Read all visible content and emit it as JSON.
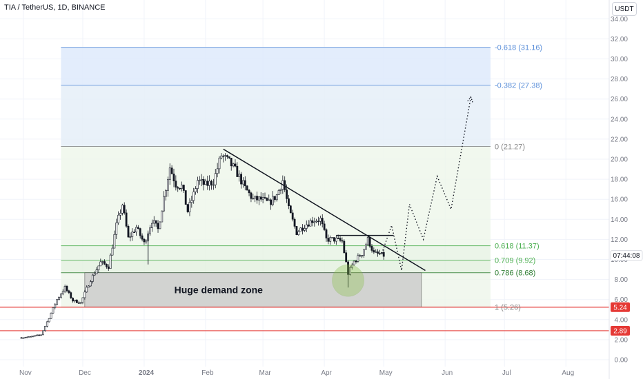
{
  "header": {
    "symbol_line": "TIA / TetherUS, 1D, BINANCE",
    "currency": "USDT"
  },
  "colors": {
    "fib_blue": "#5b8fd9",
    "fib_gray": "#888888",
    "fib_green": "#4caf50",
    "fib_green_dark": "#2e7d32",
    "red_line": "#e53935",
    "candle": "#131722",
    "demand_zone": "#c8c8c8",
    "demand_circle": "#8bc34a"
  },
  "chart_data": {
    "type": "candlestick",
    "title": "TIA / TetherUS, 1D, BINANCE",
    "ylim": [
      0,
      34
    ],
    "y_ticks": [
      "34.00",
      "32.00",
      "30.00",
      "28.00",
      "26.00",
      "24.00",
      "22.00",
      "20.00",
      "18.00",
      "16.00",
      "14.00",
      "12.00",
      "10.00",
      "8.00",
      "6.00",
      "4.00",
      "2.00",
      "0.00"
    ],
    "y_tick_values": [
      34,
      32,
      30,
      28,
      26,
      24,
      22,
      20,
      18,
      16,
      14,
      12,
      10,
      8,
      6,
      4,
      2,
      0
    ],
    "x_ticks": [
      "Nov",
      "Dec",
      "2024",
      "Feb",
      "Mar",
      "Apr",
      "May",
      "Jun",
      "Jul",
      "Aug"
    ],
    "x_tick_dates": [
      "2023-11-01",
      "2023-12-01",
      "2024-01-01",
      "2024-02-01",
      "2024-03-01",
      "2024-04-01",
      "2024-05-01",
      "2024-06-01",
      "2024-07-01",
      "2024-08-01"
    ],
    "price_path": [
      [
        "2023-10-31",
        2.2
      ],
      [
        "2023-11-05",
        2.3
      ],
      [
        "2023-11-10",
        2.5
      ],
      [
        "2023-11-14",
        4.2
      ],
      [
        "2023-11-18",
        6.0
      ],
      [
        "2023-11-22",
        7.2
      ],
      [
        "2023-11-26",
        5.9
      ],
      [
        "2023-11-30",
        5.7
      ],
      [
        "2023-12-05",
        8.0
      ],
      [
        "2023-12-10",
        9.7
      ],
      [
        "2023-12-14",
        9.3
      ],
      [
        "2023-12-18",
        13.4
      ],
      [
        "2023-12-21",
        15.5
      ],
      [
        "2023-12-24",
        12.1
      ],
      [
        "2023-12-28",
        13.2
      ],
      [
        "2024-01-01",
        11.6
      ],
      [
        "2024-01-05",
        13.9
      ],
      [
        "2024-01-08",
        13.0
      ],
      [
        "2024-01-11",
        16.2
      ],
      [
        "2024-01-14",
        19.2
      ],
      [
        "2024-01-17",
        17.5
      ],
      [
        "2024-01-20",
        17.3
      ],
      [
        "2024-01-23",
        14.8
      ],
      [
        "2024-01-26",
        16.5
      ],
      [
        "2024-01-28",
        17.9
      ],
      [
        "2024-02-01",
        17.4
      ],
      [
        "2024-02-05",
        17.8
      ],
      [
        "2024-02-09",
        20.4
      ],
      [
        "2024-02-13",
        19.7
      ],
      [
        "2024-02-17",
        18.6
      ],
      [
        "2024-02-21",
        17.1
      ],
      [
        "2024-02-25",
        16.0
      ],
      [
        "2024-02-29",
        16.0
      ],
      [
        "2024-03-04",
        15.6
      ],
      [
        "2024-03-08",
        16.4
      ],
      [
        "2024-03-11",
        17.9
      ],
      [
        "2024-03-14",
        15.0
      ],
      [
        "2024-03-18",
        12.7
      ],
      [
        "2024-03-22",
        13.4
      ],
      [
        "2024-03-26",
        13.9
      ],
      [
        "2024-03-30",
        14.0
      ],
      [
        "2024-04-02",
        12.0
      ],
      [
        "2024-04-06",
        12.0
      ],
      [
        "2024-04-10",
        11.8
      ],
      [
        "2024-04-13",
        8.6
      ],
      [
        "2024-04-16",
        9.8
      ],
      [
        "2024-04-20",
        10.6
      ],
      [
        "2024-04-23",
        12.0
      ],
      [
        "2024-04-26",
        10.6
      ],
      [
        "2024-04-29",
        10.5
      ],
      [
        "2024-05-01",
        10.4
      ]
    ],
    "fib_levels": [
      {
        "label": "-0.618 (31.16)",
        "value": 31.16
      },
      {
        "label": "-0.382 (27.38)",
        "value": 27.38
      },
      {
        "label": "0 (21.27)",
        "value": 21.27
      },
      {
        "label": "0.618 (11.37)",
        "value": 11.37
      },
      {
        "label": "0.709 (9.92)",
        "value": 9.92
      },
      {
        "label": "0.786 (8.68)",
        "value": 8.68
      },
      {
        "label": "1 (5.26)",
        "value": 5.26
      }
    ],
    "horizontal_lines": [
      {
        "label": "5.24",
        "value": 5.24
      },
      {
        "label": "2.89",
        "value": 2.89
      }
    ],
    "current_price_label": "07:44:08",
    "current_price": 10.4,
    "demand_zone": {
      "label": "Huge demand zone",
      "from": "2023-12-02",
      "to": "2024-05-20",
      "low": 5.26,
      "high": 8.68
    },
    "trendline": {
      "from": [
        "2024-02-10",
        21.0
      ],
      "to": [
        "2024-05-22",
        8.9
      ]
    },
    "resistance_segment": {
      "from": [
        "2024-04-07",
        12.4
      ],
      "to": [
        "2024-05-06",
        12.4
      ]
    },
    "projection_path": [
      [
        "2024-04-30",
        10.6
      ],
      [
        "2024-05-05",
        13.4
      ],
      [
        "2024-05-10",
        8.9
      ],
      [
        "2024-05-14",
        15.5
      ],
      [
        "2024-05-21",
        12.0
      ],
      [
        "2024-05-28",
        18.3
      ],
      [
        "2024-06-04",
        15.0
      ],
      [
        "2024-06-14",
        26.2
      ]
    ]
  }
}
